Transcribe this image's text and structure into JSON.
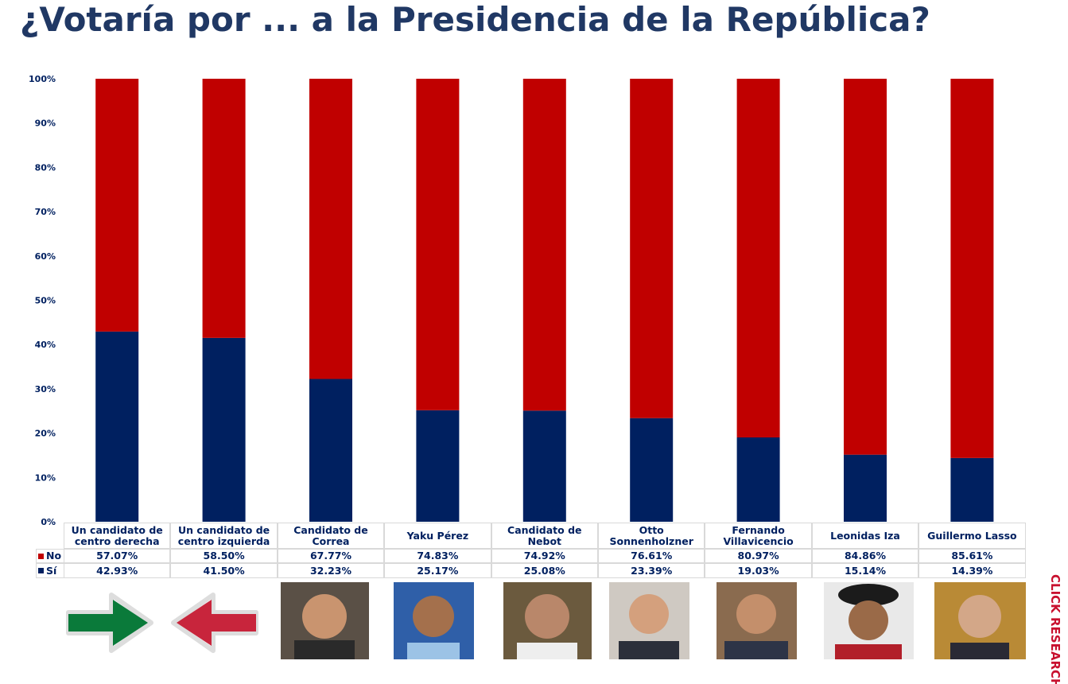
{
  "chart_data": {
    "type": "stacked_bar",
    "title": "¿Votaría por ... a la Presidencia de la República?",
    "categories": [
      "Un candidato de centro derecha",
      "Un candidato de centro izquierda",
      "Candidato de Correa",
      "Yaku Pérez",
      "Candidato de Nebot",
      "Otto Sonnenholzner",
      "Fernando Villavicencio",
      "Leonidas Iza",
      "Guillermo Lasso"
    ],
    "series": [
      {
        "name": "No",
        "color": "#c00000",
        "values": [
          57.07,
          58.5,
          67.77,
          74.83,
          74.92,
          76.61,
          80.97,
          84.86,
          85.61
        ],
        "value_labels": [
          "57.07%",
          "58.50%",
          "67.77%",
          "74.83%",
          "74.92%",
          "76.61%",
          "80.97%",
          "84.86%",
          "85.61%"
        ]
      },
      {
        "name": "Sí",
        "color": "#002060",
        "values": [
          42.93,
          41.5,
          32.23,
          25.17,
          25.08,
          23.39,
          19.03,
          15.14,
          14.39
        ],
        "value_labels": [
          "42.93%",
          "41.50%",
          "32.23%",
          "25.17%",
          "25.08%",
          "23.39%",
          "19.03%",
          "15.14%",
          "14.39%"
        ]
      }
    ],
    "ylim": [
      0,
      100
    ],
    "yticks": [
      {
        "value": 0,
        "label": "0%"
      },
      {
        "value": 10,
        "label": "10%"
      },
      {
        "value": 20,
        "label": "20%"
      },
      {
        "value": 30,
        "label": "30%"
      },
      {
        "value": 40,
        "label": "40%"
      },
      {
        "value": 50,
        "label": "50%"
      },
      {
        "value": 60,
        "label": "60%"
      },
      {
        "value": 70,
        "label": "70%"
      },
      {
        "value": 80,
        "label": "80%"
      },
      {
        "value": 90,
        "label": "90%"
      },
      {
        "value": 100,
        "label": "100%"
      }
    ]
  },
  "brand": "CLICK RESEARCH"
}
